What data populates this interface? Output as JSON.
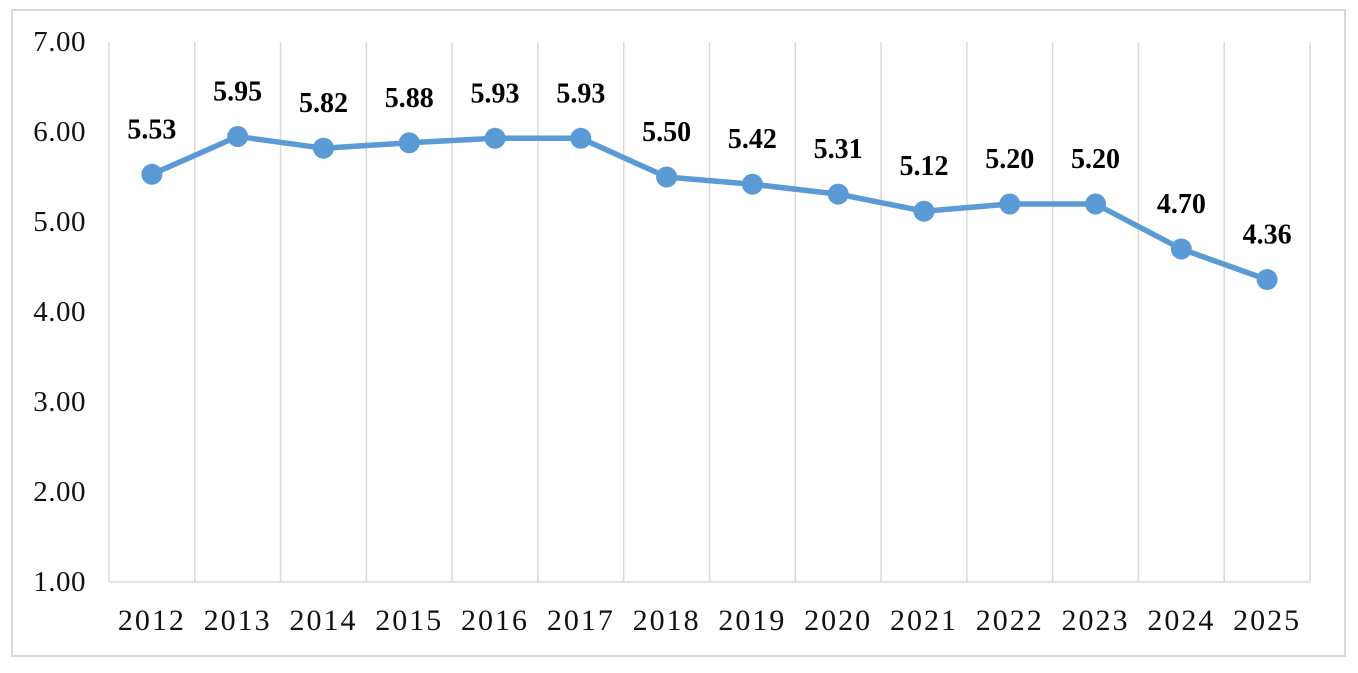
{
  "chart_data": {
    "type": "line",
    "title": "",
    "xlabel": "",
    "ylabel": "",
    "categories": [
      "2012",
      "2013",
      "2014",
      "2015",
      "2016",
      "2017",
      "2018",
      "2019",
      "2020",
      "2021",
      "2022",
      "2023",
      "2024",
      "2025"
    ],
    "series": [
      {
        "name": "",
        "values": [
          5.53,
          5.95,
          5.82,
          5.88,
          5.93,
          5.93,
          5.5,
          5.42,
          5.31,
          5.12,
          5.2,
          5.2,
          4.7,
          4.36
        ]
      }
    ],
    "data_labels": [
      "5.53",
      "5.95",
      "5.82",
      "5.88",
      "5.93",
      "5.93",
      "5.50",
      "5.42",
      "5.31",
      "5.12",
      "5.20",
      "5.20",
      "4.70",
      "4.36"
    ],
    "ylim": [
      1.0,
      7.0
    ],
    "y_tick_step": 1.0,
    "y_tick_labels": [
      "7.00",
      "6.00",
      "5.00",
      "4.00",
      "3.00",
      "2.00",
      "1.00"
    ],
    "legend": "none",
    "grid": "vertical-between-categories",
    "horizontal_gridlines": false,
    "marker": "circle",
    "colors": {
      "line": "#5B9BD5",
      "marker": "#5B9BD5",
      "gridline": "#D9D9D9",
      "axis_line": "#D9D9D9",
      "chart_border": "#D9D9D9",
      "background": "#FFFFFF",
      "axis_text": "#111111",
      "data_label_text": "#000000"
    }
  }
}
